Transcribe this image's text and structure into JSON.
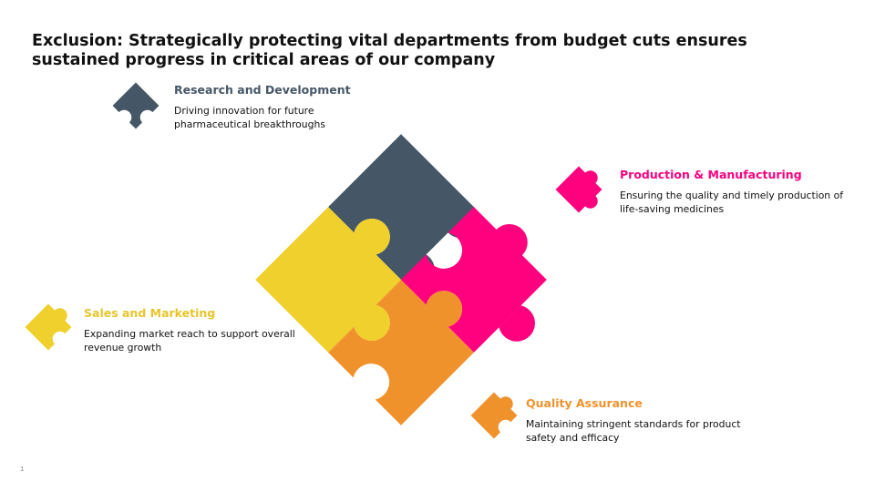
{
  "slide": {
    "title": "Exclusion: Strategically protecting vital departments from budget cuts ensures sustained progress in critical areas of our company",
    "page_number": "1"
  },
  "colors": {
    "rd": "#455766",
    "pm": "#FF007F",
    "sm": "#F0D02C",
    "qa": "#F0922C"
  },
  "departments": [
    {
      "key": "rd",
      "title": "Research and Development",
      "description": "Driving innovation for future pharmaceutical breakthroughs",
      "icon": "puzzle-piece-icon"
    },
    {
      "key": "pm",
      "title": "Production & Manufacturing",
      "description": "Ensuring the quality and timely production of life-saving medicines",
      "icon": "puzzle-piece-icon"
    },
    {
      "key": "sm",
      "title": "Sales and Marketing",
      "description": "Expanding market reach to support overall revenue growth",
      "icon": "puzzle-piece-icon"
    },
    {
      "key": "qa",
      "title": "Quality Assurance",
      "description": "Maintaining stringent standards for product safety and efficacy",
      "icon": "puzzle-piece-icon"
    }
  ]
}
